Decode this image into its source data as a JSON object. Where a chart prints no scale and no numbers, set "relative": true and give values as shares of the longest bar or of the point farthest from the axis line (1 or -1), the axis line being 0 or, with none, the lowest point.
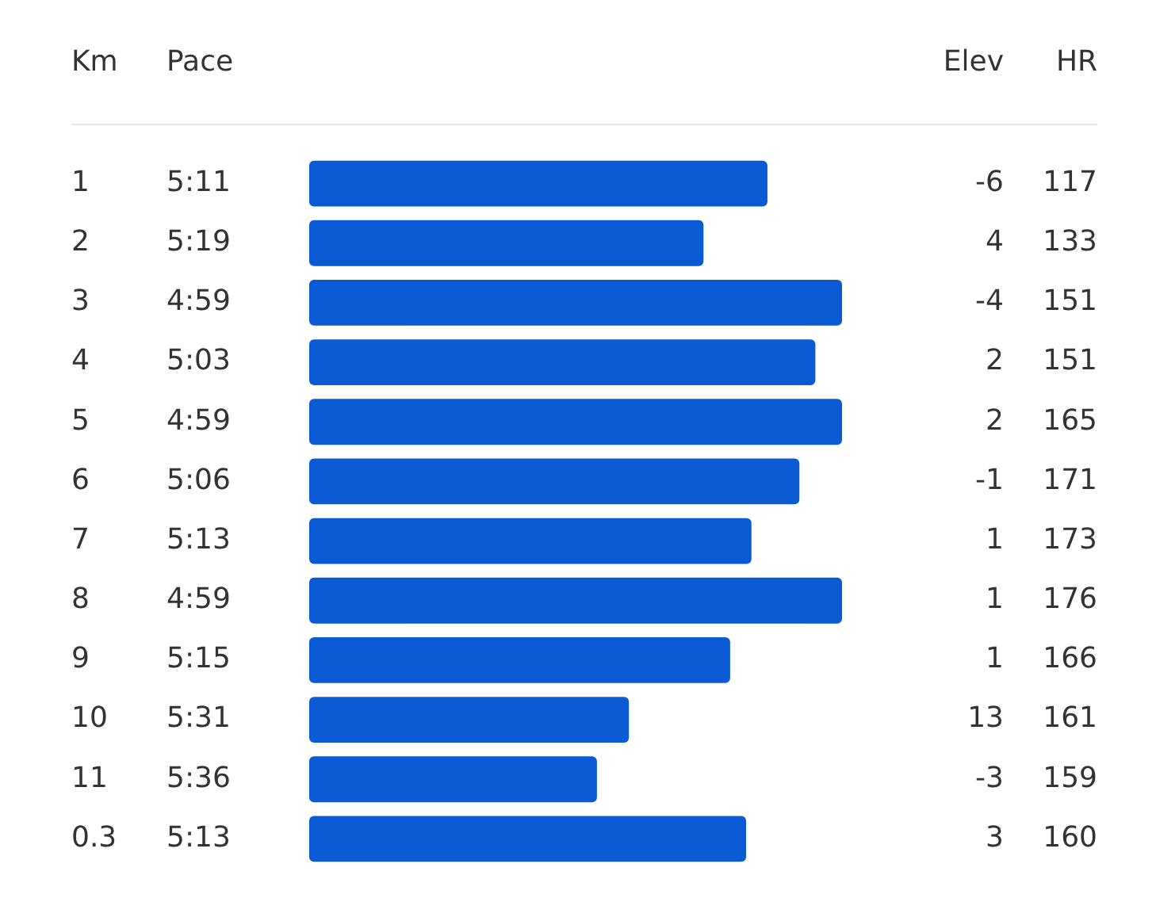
{
  "chart_data": {
    "type": "bar",
    "orientation": "horizontal",
    "relative": true,
    "ylabel": "Km",
    "categories": [
      "1",
      "2",
      "3",
      "4",
      "5",
      "6",
      "7",
      "8",
      "9",
      "10",
      "11",
      "0.3"
    ],
    "series": [
      {
        "color": "#0a5bd3",
        "values": [
          0.86,
          0.74,
          1,
          0.95,
          1,
          0.92,
          0.83,
          1,
          0.79,
          0.6,
          0.54,
          0.82
        ]
      }
    ],
    "annotations": [
      "Pace",
      "Elev",
      "HR",
      "5:11",
      "-6",
      "117",
      "5:19",
      "4",
      "133",
      "4:59",
      "-4",
      "151",
      "5:03",
      "2",
      "151",
      "4:59",
      "2",
      "165",
      "5:06",
      "-1",
      "171",
      "5:13",
      "1",
      "173",
      "4:59",
      "1",
      "176",
      "5:15",
      "1",
      "166",
      "5:31",
      "13",
      "161",
      "5:36",
      "-3",
      "159",
      "5:13",
      "3",
      "160"
    ]
  }
}
